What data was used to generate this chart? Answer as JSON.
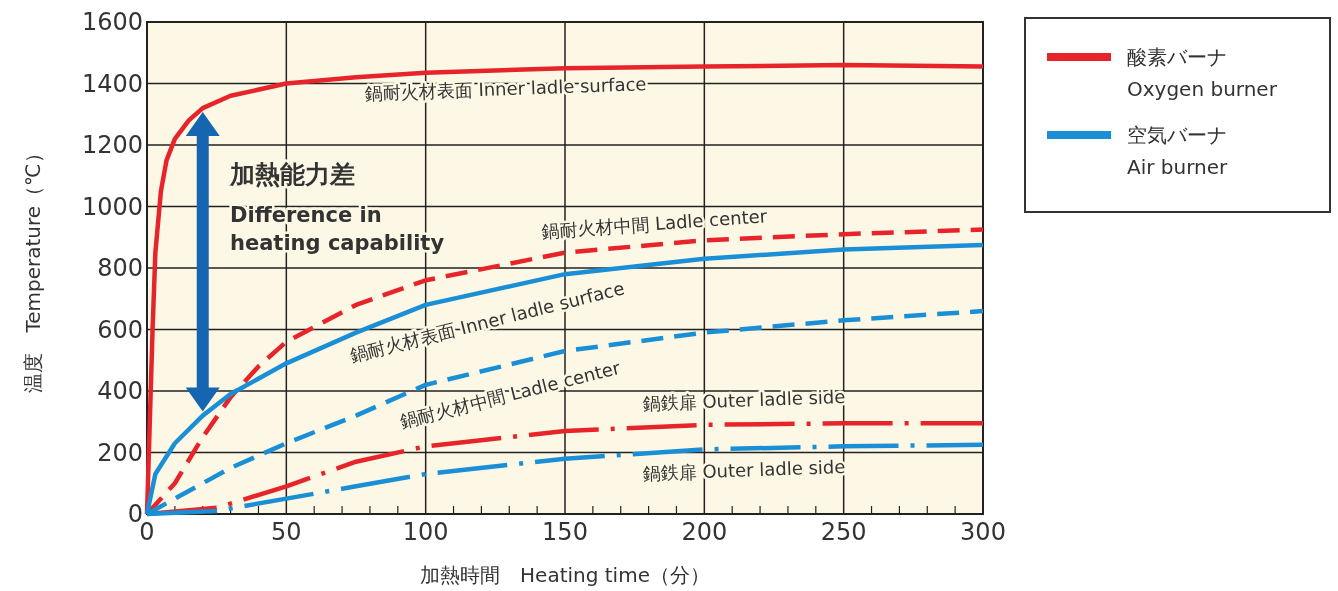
{
  "chart_data": {
    "type": "line",
    "xlabel": "加熱時間　Heating time（分）",
    "ylabel": "温度　Temperature（℃）",
    "xlim": [
      0,
      300
    ],
    "xticks": [
      0,
      50,
      100,
      150,
      200,
      250,
      300
    ],
    "ylim": [
      0,
      1600
    ],
    "yticks": [
      0,
      200,
      400,
      600,
      800,
      1000,
      1200,
      1400,
      1600
    ],
    "grid": true,
    "legend": "right",
    "marker": "none",
    "series": [
      {
        "name": "酸素バーナ\nOxygen burner",
        "color": "#e8242b",
        "line_style": "solid",
        "x": [
          0,
          1,
          2,
          3,
          5,
          7,
          10,
          15,
          20,
          30,
          50,
          75,
          100,
          150,
          200,
          250,
          300
        ],
        "values": [
          0,
          300,
          600,
          850,
          1050,
          1150,
          1220,
          1280,
          1320,
          1360,
          1400,
          1420,
          1435,
          1450,
          1455,
          1460,
          1455
        ]
      },
      {
        "color": "#e8242b",
        "line_style": "dashed",
        "x": [
          0,
          10,
          20,
          30,
          40,
          50,
          75,
          100,
          150,
          200,
          250,
          300
        ],
        "values": [
          0,
          100,
          250,
          380,
          480,
          560,
          680,
          760,
          850,
          890,
          910,
          925
        ]
      },
      {
        "color": "#e8242b",
        "line_style": "dashdot",
        "x": [
          0,
          25,
          50,
          75,
          100,
          150,
          200,
          250,
          300
        ],
        "values": [
          0,
          20,
          90,
          170,
          220,
          270,
          290,
          295,
          295
        ]
      },
      {
        "name": "空気バーナ\nAir burner",
        "color": "#1a8fd6",
        "line_style": "solid",
        "x": [
          0,
          3,
          10,
          20,
          30,
          50,
          75,
          100,
          150,
          200,
          250,
          300
        ],
        "values": [
          0,
          130,
          230,
          320,
          390,
          490,
          590,
          680,
          780,
          830,
          860,
          875
        ]
      },
      {
        "color": "#1a8fd6",
        "line_style": "dashed",
        "x": [
          0,
          10,
          20,
          30,
          50,
          75,
          100,
          150,
          200,
          250,
          300
        ],
        "values": [
          0,
          50,
          100,
          150,
          230,
          320,
          420,
          530,
          590,
          630,
          660
        ]
      },
      {
        "color": "#1a8fd6",
        "line_style": "dashdot",
        "x": [
          0,
          25,
          50,
          75,
          100,
          150,
          200,
          250,
          300
        ],
        "values": [
          0,
          10,
          50,
          90,
          130,
          180,
          210,
          220,
          225
        ]
      }
    ],
    "annotations": [
      "加熱能力差",
      "Difference in heating capability",
      "鍋耐火材表面 Inner ladle surface",
      "鍋耐火材中間 Ladle center",
      "鍋耐火材表面 Inner ladle surface",
      "鍋耐火材中間 Ladle center",
      "鍋鉄扉 Outer ladle side",
      "鍋鉄扉 Outer ladle side"
    ]
  }
}
